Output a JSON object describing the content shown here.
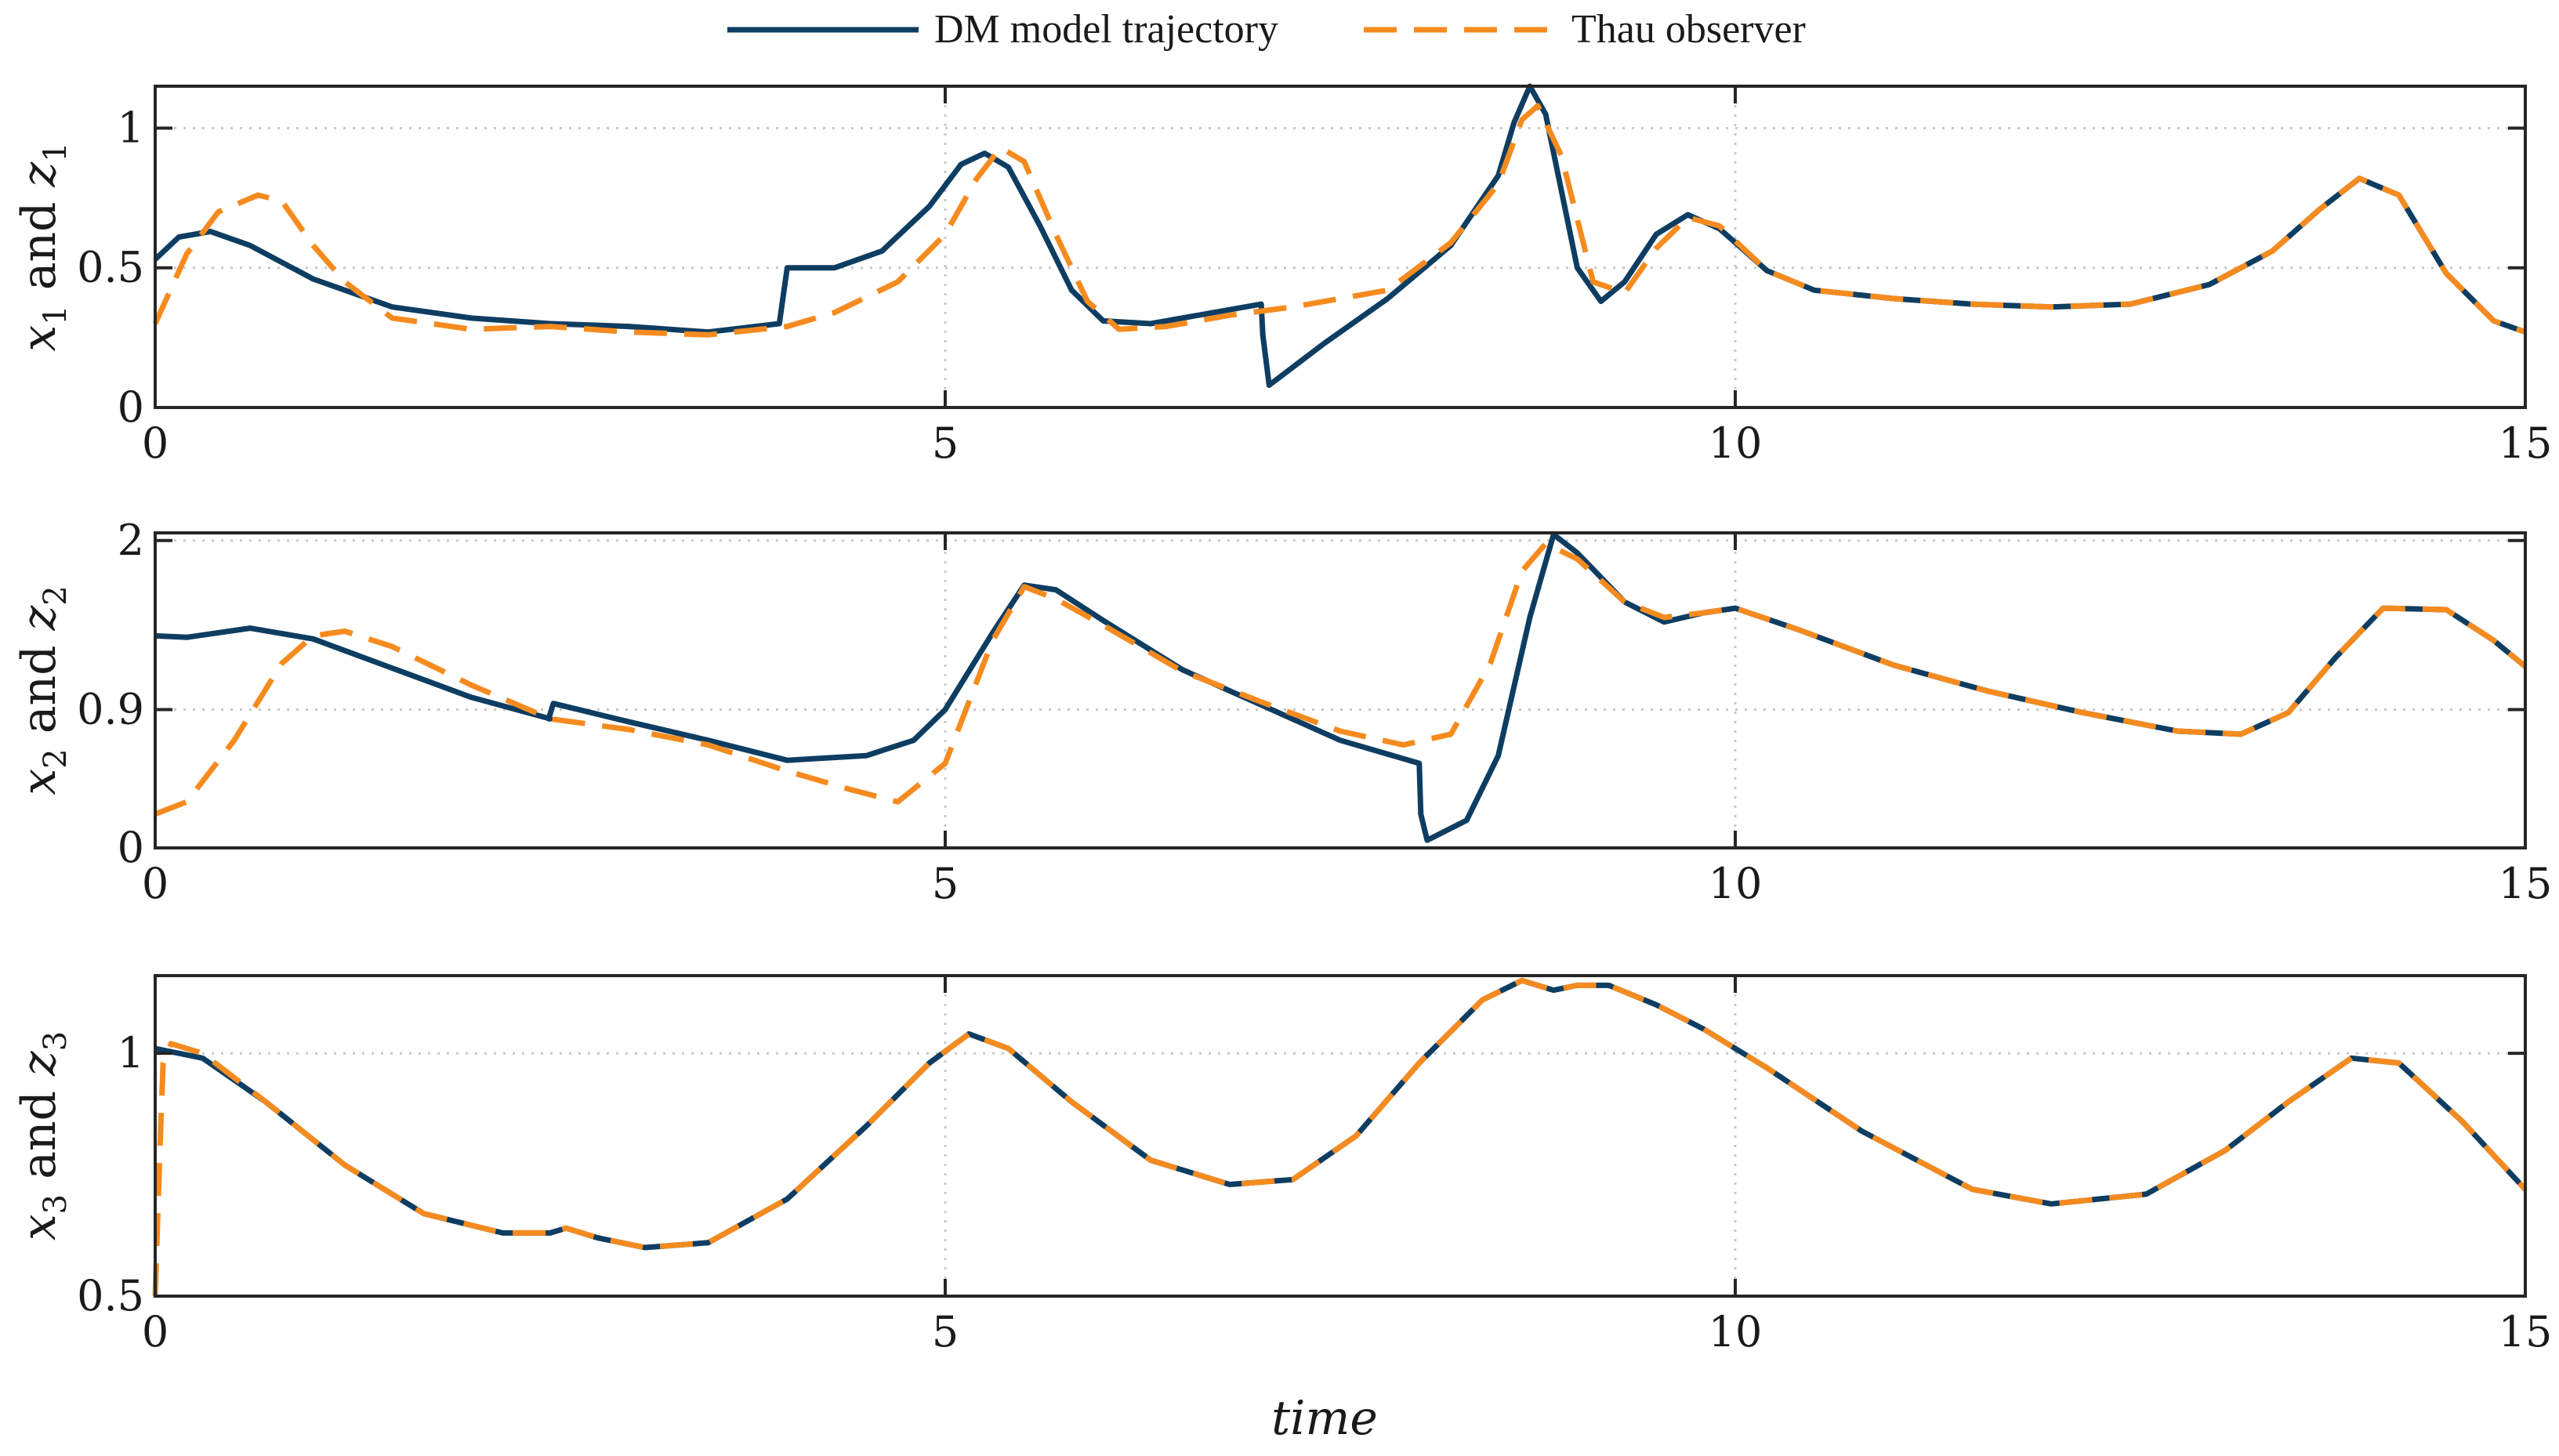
{
  "chart_data": [
    {
      "type": "line",
      "ylabel_var": "x",
      "ylabel_sub": "1",
      "ylabel_and": "and",
      "ylabel_obs": "z",
      "xlim": [
        0,
        15
      ],
      "ylim": [
        0,
        1.15
      ],
      "xticks": [
        0,
        5,
        10,
        15
      ],
      "xtick_labels": [
        "0",
        "5",
        "10",
        "15"
      ],
      "yticks": [
        0,
        0.5,
        1
      ],
      "ytick_labels": [
        "0",
        "0.5",
        "1"
      ],
      "grid": true,
      "series": [
        {
          "name": "DM model trajectory",
          "x": [
            0,
            0.15,
            0.35,
            0.6,
            1.0,
            1.5,
            2.0,
            2.5,
            3.0,
            3.5,
            3.95,
            4.0,
            4.05,
            4.3,
            4.6,
            4.9,
            5.1,
            5.25,
            5.4,
            5.6,
            5.8,
            6.0,
            6.3,
            6.6,
            7.0,
            7.01,
            7.05,
            7.4,
            7.8,
            8.2,
            8.5,
            8.6,
            8.7,
            8.8,
            9.0,
            9.15,
            9.3,
            9.5,
            9.7,
            9.9,
            10.2,
            10.5,
            11.0,
            11.5,
            12.0,
            12.5,
            13.0,
            13.4,
            13.7,
            13.95,
            14.2,
            14.5,
            14.8,
            15.0
          ],
          "y": [
            0.53,
            0.61,
            0.63,
            0.58,
            0.46,
            0.36,
            0.32,
            0.3,
            0.29,
            0.27,
            0.3,
            0.5,
            0.5,
            0.5,
            0.56,
            0.72,
            0.87,
            0.91,
            0.86,
            0.65,
            0.42,
            0.31,
            0.3,
            0.33,
            0.37,
            0.26,
            0.08,
            0.23,
            0.39,
            0.58,
            0.83,
            1.02,
            1.15,
            1.05,
            0.5,
            0.38,
            0.45,
            0.62,
            0.69,
            0.64,
            0.49,
            0.42,
            0.39,
            0.37,
            0.36,
            0.37,
            0.44,
            0.56,
            0.71,
            0.82,
            0.76,
            0.48,
            0.31,
            0.27
          ]
        },
        {
          "name": "Thau observer",
          "x": [
            0,
            0.2,
            0.4,
            0.65,
            0.8,
            1.0,
            1.2,
            1.5,
            2.0,
            2.5,
            3.0,
            3.5,
            4.0,
            4.3,
            4.7,
            5.0,
            5.2,
            5.35,
            5.5,
            5.7,
            5.9,
            6.1,
            6.4,
            6.8,
            7.2,
            7.8,
            8.2,
            8.5,
            8.65,
            8.75,
            8.9,
            9.1,
            9.3,
            9.5,
            9.7,
            9.9,
            10.2,
            10.5,
            11.0,
            11.5,
            12.0,
            12.5,
            13.0,
            13.4,
            13.7,
            13.95,
            14.2,
            14.5,
            14.8,
            15.0
          ],
          "y": [
            0.3,
            0.55,
            0.7,
            0.76,
            0.74,
            0.58,
            0.45,
            0.32,
            0.28,
            0.29,
            0.27,
            0.26,
            0.29,
            0.34,
            0.45,
            0.62,
            0.82,
            0.93,
            0.88,
            0.62,
            0.38,
            0.28,
            0.29,
            0.33,
            0.36,
            0.42,
            0.59,
            0.8,
            1.03,
            1.08,
            0.9,
            0.45,
            0.41,
            0.57,
            0.68,
            0.65,
            0.49,
            0.42,
            0.39,
            0.37,
            0.36,
            0.37,
            0.44,
            0.56,
            0.71,
            0.82,
            0.76,
            0.48,
            0.31,
            0.27
          ]
        }
      ]
    },
    {
      "type": "line",
      "ylabel_var": "x",
      "ylabel_sub": "2",
      "ylabel_and": "and",
      "ylabel_obs": "z",
      "xlim": [
        0,
        15
      ],
      "ylim": [
        0,
        2.05
      ],
      "xticks": [
        0,
        5,
        10,
        15
      ],
      "xtick_labels": [
        "0",
        "5",
        "10",
        "15"
      ],
      "yticks": [
        0,
        0.9,
        2
      ],
      "ytick_labels": [
        "0",
        "0.9",
        "2"
      ],
      "grid": true,
      "series": [
        {
          "name": "DM model trajectory",
          "x": [
            0,
            0.2,
            0.6,
            1.0,
            1.5,
            2.0,
            2.5,
            2.49,
            2.52,
            3.0,
            3.5,
            4.0,
            4.5,
            4.8,
            5.0,
            5.3,
            5.5,
            5.7,
            6.0,
            6.5,
            7.0,
            7.5,
            8.0,
            8.01,
            8.05,
            8.3,
            8.5,
            8.7,
            8.85,
            9.0,
            9.3,
            9.55,
            9.8,
            10.0,
            10.4,
            11.0,
            11.6,
            12.2,
            12.8,
            13.2,
            13.5,
            13.8,
            14.1,
            14.5,
            14.8,
            15.0
          ],
          "y": [
            1.38,
            1.37,
            1.43,
            1.36,
            1.17,
            0.98,
            0.84,
            0.84,
            0.94,
            0.82,
            0.7,
            0.57,
            0.6,
            0.7,
            0.9,
            1.4,
            1.71,
            1.68,
            1.48,
            1.16,
            0.93,
            0.7,
            0.55,
            0.22,
            0.05,
            0.18,
            0.6,
            1.5,
            2.04,
            1.92,
            1.6,
            1.47,
            1.53,
            1.56,
            1.42,
            1.19,
            1.02,
            0.88,
            0.76,
            0.74,
            0.88,
            1.24,
            1.56,
            1.55,
            1.35,
            1.18
          ]
        },
        {
          "name": "Thau observer",
          "x": [
            0,
            0.2,
            0.5,
            0.8,
            1.0,
            1.2,
            1.5,
            2.0,
            2.5,
            3.0,
            3.5,
            4.0,
            4.4,
            4.7,
            5.0,
            5.3,
            5.5,
            5.7,
            6.0,
            6.5,
            7.0,
            7.5,
            7.9,
            8.2,
            8.45,
            8.65,
            8.8,
            9.0,
            9.3,
            9.55,
            9.8,
            10.0,
            10.4,
            11.0,
            11.6,
            12.2,
            12.8,
            13.2,
            13.5,
            13.8,
            14.1,
            14.5,
            14.8,
            15.0
          ],
          "y": [
            0.22,
            0.3,
            0.7,
            1.2,
            1.38,
            1.41,
            1.31,
            1.06,
            0.84,
            0.77,
            0.67,
            0.5,
            0.38,
            0.3,
            0.55,
            1.35,
            1.7,
            1.62,
            1.45,
            1.15,
            0.95,
            0.76,
            0.67,
            0.74,
            1.2,
            1.8,
            1.98,
            1.88,
            1.6,
            1.5,
            1.53,
            1.56,
            1.42,
            1.19,
            1.02,
            0.88,
            0.76,
            0.74,
            0.88,
            1.24,
            1.56,
            1.55,
            1.35,
            1.18
          ]
        }
      ]
    },
    {
      "type": "line",
      "ylabel_var": "x",
      "ylabel_sub": "3",
      "ylabel_and": "and",
      "ylabel_obs": "z",
      "xlim": [
        0,
        15
      ],
      "ylim": [
        0.5,
        1.16
      ],
      "xticks": [
        0,
        5,
        10,
        15
      ],
      "xtick_labels": [
        "0",
        "5",
        "10",
        "15"
      ],
      "yticks": [
        0.5,
        1
      ],
      "ytick_labels": [
        "0.5",
        "1"
      ],
      "grid": true,
      "series": [
        {
          "name": "DM model trajectory",
          "x": [
            0,
            0.3,
            0.7,
            1.2,
            1.7,
            2.2,
            2.5,
            2.6,
            2.8,
            3.1,
            3.5,
            4.0,
            4.5,
            4.9,
            5.15,
            5.4,
            5.8,
            6.3,
            6.8,
            7.2,
            7.6,
            8.0,
            8.4,
            8.65,
            8.85,
            9.0,
            9.2,
            9.5,
            9.8,
            10.2,
            10.8,
            11.5,
            12.0,
            12.6,
            13.1,
            13.5,
            13.9,
            14.2,
            14.6,
            15.0
          ],
          "y": [
            1.01,
            0.99,
            0.9,
            0.77,
            0.67,
            0.63,
            0.63,
            0.64,
            0.62,
            0.6,
            0.61,
            0.7,
            0.85,
            0.98,
            1.04,
            1.01,
            0.9,
            0.78,
            0.73,
            0.74,
            0.83,
            0.98,
            1.11,
            1.15,
            1.13,
            1.14,
            1.14,
            1.1,
            1.05,
            0.97,
            0.84,
            0.72,
            0.69,
            0.71,
            0.8,
            0.9,
            0.99,
            0.98,
            0.86,
            0.72
          ]
        },
        {
          "name": "Thau observer",
          "x": [
            0,
            0.03,
            0.05,
            0.1,
            0.3,
            0.7,
            1.2,
            1.7,
            2.2,
            2.5,
            2.6,
            2.8,
            3.1,
            3.5,
            4.0,
            4.5,
            4.9,
            5.15,
            5.4,
            5.8,
            6.3,
            6.8,
            7.2,
            7.6,
            8.0,
            8.4,
            8.65,
            8.85,
            9.0,
            9.2,
            9.5,
            9.8,
            10.2,
            10.8,
            11.5,
            12.0,
            12.6,
            13.1,
            13.5,
            13.9,
            14.2,
            14.6,
            15.0
          ],
          "y": [
            0.5,
            0.8,
            0.98,
            1.02,
            1.0,
            0.9,
            0.77,
            0.67,
            0.63,
            0.63,
            0.64,
            0.62,
            0.6,
            0.61,
            0.7,
            0.85,
            0.98,
            1.04,
            1.01,
            0.9,
            0.78,
            0.73,
            0.74,
            0.83,
            0.98,
            1.11,
            1.15,
            1.13,
            1.14,
            1.14,
            1.1,
            1.05,
            0.97,
            0.84,
            0.72,
            0.69,
            0.71,
            0.8,
            0.9,
            0.99,
            0.98,
            0.86,
            0.72
          ]
        }
      ]
    }
  ],
  "legend": {
    "items": [
      {
        "label": "DM model trajectory",
        "color": "#0e3d62",
        "style": "solid"
      },
      {
        "label": "Thau observer",
        "color": "#f58b1f",
        "style": "dashed"
      }
    ]
  },
  "xlabel": "time",
  "colors": {
    "dm": "#0e3d62",
    "thau": "#f58b1f"
  }
}
